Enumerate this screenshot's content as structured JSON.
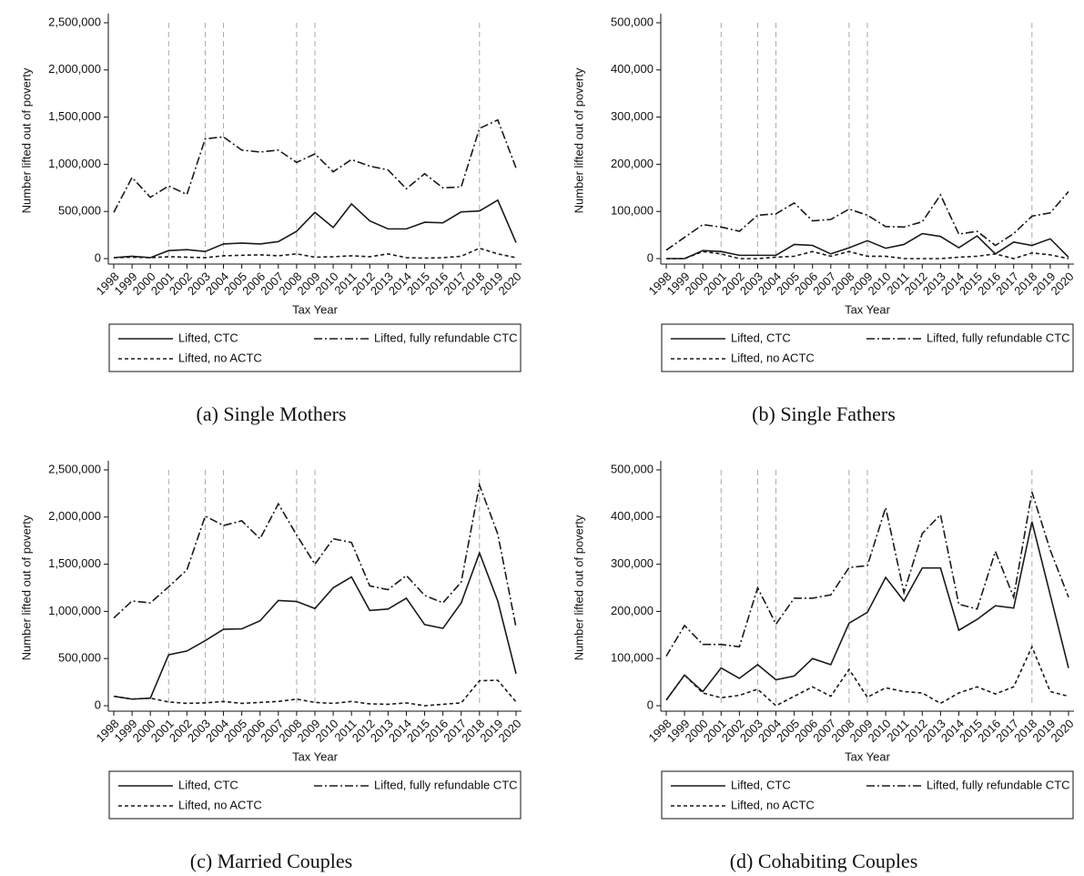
{
  "chart_data": [
    {
      "type": "line",
      "caption": "(a) Single Mothers",
      "xlabel": "Tax Year",
      "ylabel": "Number lifted out of poverty",
      "x": [
        1998,
        1999,
        2000,
        2001,
        2002,
        2003,
        2004,
        2005,
        2006,
        2007,
        2008,
        2009,
        2010,
        2011,
        2012,
        2013,
        2014,
        2015,
        2016,
        2017,
        2018,
        2019,
        2020
      ],
      "xlim": [
        1998,
        2020
      ],
      "ylim": [
        0,
        2500000
      ],
      "yticks": [
        0,
        {
          "value": 500000,
          "label": "500,000"
        },
        {
          "value": 1000000,
          "label": "1,000,000"
        },
        {
          "value": 1500000,
          "label": "1,500,000"
        },
        {
          "value": 2000000,
          "label": "2,000,000"
        },
        {
          "value": 2500000,
          "label": "2,500,000"
        }
      ],
      "vlines": [
        2001,
        2003,
        2004,
        2008,
        2009,
        2018
      ],
      "series": [
        {
          "name": "Lifted, CTC",
          "color": "#1a1a1a",
          "dash": "solid",
          "values": [
            10000,
            25000,
            10000,
            85000,
            95000,
            75000,
            155000,
            165000,
            155000,
            180000,
            290000,
            490000,
            330000,
            580000,
            400000,
            315000,
            315000,
            385000,
            380000,
            495000,
            505000,
            620000,
            170000
          ]
        },
        {
          "name": "Lifted, fully refundable CTC",
          "color": "#1a1a1a",
          "dash": "dashdot",
          "values": [
            490000,
            860000,
            650000,
            770000,
            680000,
            1270000,
            1290000,
            1150000,
            1130000,
            1150000,
            1020000,
            1110000,
            920000,
            1050000,
            980000,
            940000,
            740000,
            900000,
            750000,
            760000,
            1380000,
            1470000,
            960000
          ]
        },
        {
          "name": "Lifted, no ACTC",
          "color": "#1a1a1a",
          "dash": "dash",
          "values": [
            10000,
            15000,
            10000,
            20000,
            15000,
            10000,
            30000,
            35000,
            40000,
            30000,
            50000,
            15000,
            20000,
            30000,
            20000,
            50000,
            10000,
            5000,
            10000,
            25000,
            110000,
            50000,
            10000
          ]
        }
      ]
    },
    {
      "type": "line",
      "caption": "(b) Single Fathers",
      "xlabel": "Tax Year",
      "ylabel": "Number lifted out of poverty",
      "x": [
        1998,
        1999,
        2000,
        2001,
        2002,
        2003,
        2004,
        2005,
        2006,
        2007,
        2008,
        2009,
        2010,
        2011,
        2012,
        2013,
        2014,
        2015,
        2016,
        2017,
        2018,
        2019,
        2020
      ],
      "xlim": [
        1998,
        2020
      ],
      "ylim": [
        0,
        500000
      ],
      "yticks": [
        0,
        {
          "value": 100000,
          "label": "100,000"
        },
        {
          "value": 200000,
          "label": "200,000"
        },
        {
          "value": 300000,
          "label": "300,000"
        },
        {
          "value": 400000,
          "label": "400,000"
        },
        {
          "value": 500000,
          "label": "500,000"
        }
      ],
      "vlines": [
        2001,
        2003,
        2004,
        2008,
        2009,
        2018
      ],
      "series": [
        {
          "name": "Lifted, CTC",
          "color": "#1a1a1a",
          "dash": "solid",
          "values": [
            0,
            0,
            17000,
            15000,
            7000,
            7000,
            7000,
            30000,
            28000,
            10000,
            23000,
            38000,
            22000,
            30000,
            53000,
            47000,
            23000,
            48000,
            10000,
            35000,
            28000,
            42000,
            3000
          ]
        },
        {
          "name": "Lifted, fully refundable CTC",
          "color": "#1a1a1a",
          "dash": "dashdot",
          "values": [
            18000,
            45000,
            72000,
            67000,
            58000,
            92000,
            95000,
            118000,
            80000,
            83000,
            105000,
            92000,
            68000,
            67000,
            78000,
            135000,
            52000,
            58000,
            28000,
            53000,
            90000,
            97000,
            142000
          ]
        },
        {
          "name": "Lifted, no ACTC",
          "color": "#1a1a1a",
          "dash": "dash",
          "values": [
            0,
            0,
            15000,
            10000,
            0,
            0,
            3000,
            5000,
            15000,
            5000,
            15000,
            5000,
            5000,
            0,
            0,
            0,
            3000,
            5000,
            10000,
            0,
            12000,
            8000,
            0
          ]
        }
      ]
    },
    {
      "type": "line",
      "caption": "(c) Married Couples",
      "xlabel": "Tax Year",
      "ylabel": "Number lifted out of poverty",
      "x": [
        1998,
        1999,
        2000,
        2001,
        2002,
        2003,
        2004,
        2005,
        2006,
        2007,
        2008,
        2009,
        2010,
        2011,
        2012,
        2013,
        2014,
        2015,
        2016,
        2017,
        2018,
        2019,
        2020
      ],
      "xlim": [
        1998,
        2020
      ],
      "ylim": [
        0,
        2500000
      ],
      "yticks": [
        0,
        {
          "value": 500000,
          "label": "500,000"
        },
        {
          "value": 1000000,
          "label": "1,000,000"
        },
        {
          "value": 1500000,
          "label": "1,500,000"
        },
        {
          "value": 2000000,
          "label": "2,000,000"
        },
        {
          "value": 2500000,
          "label": "2,500,000"
        }
      ],
      "vlines": [
        2001,
        2003,
        2004,
        2008,
        2009,
        2018
      ],
      "series": [
        {
          "name": "Lifted, CTC",
          "color": "#1a1a1a",
          "dash": "solid",
          "values": [
            100000,
            70000,
            80000,
            540000,
            580000,
            690000,
            810000,
            815000,
            900000,
            1115000,
            1105000,
            1030000,
            1250000,
            1365000,
            1010000,
            1025000,
            1140000,
            860000,
            820000,
            1090000,
            1620000,
            1110000,
            340000
          ]
        },
        {
          "name": "Lifted, fully refundable CTC",
          "color": "#1a1a1a",
          "dash": "dashdot",
          "values": [
            930000,
            1110000,
            1090000,
            1260000,
            1440000,
            2010000,
            1910000,
            1960000,
            1770000,
            2140000,
            1810000,
            1500000,
            1770000,
            1730000,
            1270000,
            1230000,
            1380000,
            1170000,
            1090000,
            1310000,
            2340000,
            1820000,
            830000
          ]
        },
        {
          "name": "Lifted, no ACTC",
          "color": "#1a1a1a",
          "dash": "dash",
          "values": [
            100000,
            70000,
            80000,
            40000,
            25000,
            30000,
            45000,
            25000,
            35000,
            45000,
            70000,
            35000,
            25000,
            45000,
            20000,
            15000,
            30000,
            0,
            15000,
            30000,
            265000,
            270000,
            40000
          ]
        }
      ]
    },
    {
      "type": "line",
      "caption": "(d) Cohabiting Couples",
      "xlabel": "Tax Year",
      "ylabel": "Number lifted out of poverty",
      "x": [
        1998,
        1999,
        2000,
        2001,
        2002,
        2003,
        2004,
        2005,
        2006,
        2007,
        2008,
        2009,
        2010,
        2011,
        2012,
        2013,
        2014,
        2015,
        2016,
        2017,
        2018,
        2019,
        2020
      ],
      "xlim": [
        1998,
        2020
      ],
      "ylim": [
        0,
        500000
      ],
      "yticks": [
        0,
        {
          "value": 100000,
          "label": "100,000"
        },
        {
          "value": 200000,
          "label": "200,000"
        },
        {
          "value": 300000,
          "label": "300,000"
        },
        {
          "value": 400000,
          "label": "400,000"
        },
        {
          "value": 500000,
          "label": "500,000"
        }
      ],
      "vlines": [
        2001,
        2003,
        2004,
        2008,
        2009,
        2018
      ],
      "series": [
        {
          "name": "Lifted, CTC",
          "color": "#1a1a1a",
          "dash": "solid",
          "values": [
            12000,
            65000,
            30000,
            80000,
            58000,
            87000,
            55000,
            63000,
            100000,
            87000,
            175000,
            198000,
            272000,
            222000,
            292000,
            292000,
            160000,
            183000,
            212000,
            207000,
            390000,
            235000,
            80000
          ]
        },
        {
          "name": "Lifted, fully refundable CTC",
          "color": "#1a1a1a",
          "dash": "dashdot",
          "values": [
            105000,
            170000,
            130000,
            130000,
            125000,
            250000,
            173000,
            228000,
            228000,
            235000,
            293000,
            297000,
            420000,
            240000,
            365000,
            405000,
            215000,
            205000,
            327000,
            230000,
            453000,
            330000,
            230000
          ]
        },
        {
          "name": "Lifted, no ACTC",
          "color": "#1a1a1a",
          "dash": "dash",
          "values": [
            12000,
            65000,
            27000,
            17000,
            22000,
            35000,
            0,
            20000,
            40000,
            20000,
            77000,
            18000,
            38000,
            30000,
            27000,
            5000,
            27000,
            40000,
            25000,
            40000,
            125000,
            30000,
            20000
          ]
        }
      ]
    }
  ]
}
